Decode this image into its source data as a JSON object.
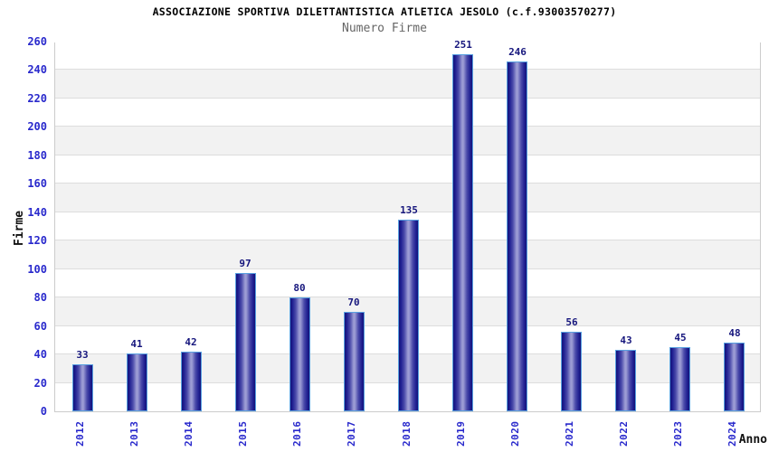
{
  "header": {
    "title": "ASSOCIAZIONE SPORTIVA DILETTANTISTICA ATLETICA JESOLO (c.f.93003570277)",
    "subtitle": "Numero Firme"
  },
  "chart_data": {
    "type": "bar",
    "title": "ASSOCIAZIONE SPORTIVA DILETTANTISTICA ATLETICA JESOLO (c.f.93003570277)",
    "subtitle": "Numero Firme",
    "categories": [
      "2012",
      "2013",
      "2014",
      "2015",
      "2016",
      "2017",
      "2018",
      "2019",
      "2020",
      "2021",
      "2022",
      "2023",
      "2024"
    ],
    "values": [
      33,
      41,
      42,
      97,
      80,
      70,
      135,
      251,
      246,
      56,
      43,
      45,
      48
    ],
    "xlabel": "Anno",
    "ylabel": "Firme",
    "ylim": [
      0,
      260
    ],
    "ytick_step": 20,
    "grid": "horizontal-only",
    "legend": false,
    "bar_labels_shown": true,
    "colors": {
      "bar_edge": "#131378",
      "bar_shade": "#4a4aaa",
      "bar_mid": "#9c9cd4",
      "bar_outline": "#58a0e0",
      "value_label": "#16167d",
      "tick_label": "#2929cc",
      "band_gray": "#f2f2f2",
      "band_white": "#ffffff",
      "gridline": "#dddddd",
      "plot_border": "#cccccc",
      "title_color": "#000000",
      "subtitle_color": "#666666"
    }
  }
}
